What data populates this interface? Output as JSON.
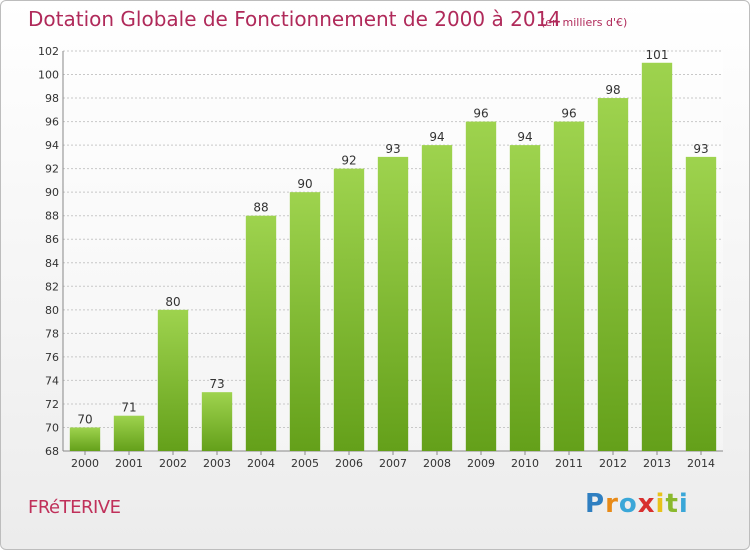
{
  "chart_data": {
    "type": "bar",
    "title": "Dotation Globale de Fonctionnement de 2000 à 2014",
    "subtitle": "(en milliers d'€)",
    "categories": [
      "2000",
      "2001",
      "2002",
      "2003",
      "2004",
      "2005",
      "2006",
      "2007",
      "2008",
      "2009",
      "2010",
      "2011",
      "2012",
      "2013",
      "2014"
    ],
    "values": [
      70,
      71,
      80,
      73,
      88,
      90,
      92,
      93,
      94,
      96,
      94,
      96,
      98,
      101,
      93
    ],
    "ylim": [
      68,
      102
    ],
    "yticks": [
      68,
      70,
      72,
      74,
      76,
      78,
      80,
      82,
      84,
      86,
      88,
      90,
      92,
      94,
      96,
      98,
      100,
      102
    ],
    "grid": true,
    "bar_color": "#80bd35"
  },
  "footer": {
    "commune": "FRéTERIVE",
    "brand_letters": [
      "P",
      "r",
      "o",
      "x",
      "i",
      "t",
      "i"
    ],
    "brand_colors": [
      "#2f7fc1",
      "#e88a17",
      "#3aa7d8",
      "#d8302f",
      "#e8c21a",
      "#8ab92d",
      "#3aa7d8"
    ]
  }
}
